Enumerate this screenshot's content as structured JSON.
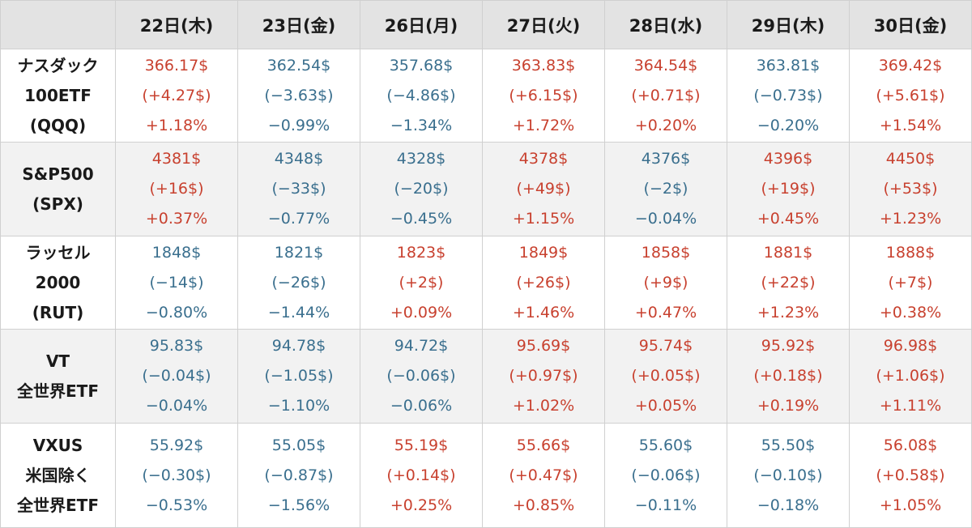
{
  "colors": {
    "up": "#c8412f",
    "down": "#3a6f8e",
    "header_bg": "#e3e3e3",
    "alt_row_bg": "#f2f2f2",
    "grid": "#d0d0d0"
  },
  "header": {
    "corner": "",
    "dates": [
      "22日(木)",
      "23日(金)",
      "26日(月)",
      "27日(火)",
      "28日(水)",
      "29日(木)",
      "30日(金)"
    ]
  },
  "rows": [
    {
      "label": [
        "ナスダック",
        "100ETF",
        "(QQQ)"
      ],
      "cells": [
        {
          "trend": "up",
          "price": "366.17$",
          "change": "(+4.27$)",
          "pct": "+1.18%"
        },
        {
          "trend": "down",
          "price": "362.54$",
          "change": "(−3.63$)",
          "pct": "−0.99%"
        },
        {
          "trend": "down",
          "price": "357.68$",
          "change": "(−4.86$)",
          "pct": "−1.34%"
        },
        {
          "trend": "up",
          "price": "363.83$",
          "change": "(+6.15$)",
          "pct": "+1.72%"
        },
        {
          "trend": "up",
          "price": "364.54$",
          "change": "(+0.71$)",
          "pct": "+0.20%"
        },
        {
          "trend": "down",
          "price": "363.81$",
          "change": "(−0.73$)",
          "pct": "−0.20%"
        },
        {
          "trend": "up",
          "price": "369.42$",
          "change": "(+5.61$)",
          "pct": "+1.54%"
        }
      ]
    },
    {
      "label": [
        "S&P500",
        "(SPX)"
      ],
      "cells": [
        {
          "trend": "up",
          "price": "4381$",
          "change": "(+16$)",
          "pct": "+0.37%"
        },
        {
          "trend": "down",
          "price": "4348$",
          "change": "(−33$)",
          "pct": "−0.77%"
        },
        {
          "trend": "down",
          "price": "4328$",
          "change": "(−20$)",
          "pct": "−0.45%"
        },
        {
          "trend": "up",
          "price": "4378$",
          "change": "(+49$)",
          "pct": "+1.15%"
        },
        {
          "trend": "down",
          "price": "4376$",
          "change": "(−2$)",
          "pct": "−0.04%"
        },
        {
          "trend": "up",
          "price": "4396$",
          "change": "(+19$)",
          "pct": "+0.45%"
        },
        {
          "trend": "up",
          "price": "4450$",
          "change": "(+53$)",
          "pct": "+1.23%"
        }
      ]
    },
    {
      "label": [
        "ラッセル",
        "2000",
        "(RUT)"
      ],
      "cells": [
        {
          "trend": "down",
          "price": "1848$",
          "change": "(−14$)",
          "pct": "−0.80%"
        },
        {
          "trend": "down",
          "price": "1821$",
          "change": "(−26$)",
          "pct": "−1.44%"
        },
        {
          "trend": "up",
          "price": "1823$",
          "change": "(+2$)",
          "pct": "+0.09%"
        },
        {
          "trend": "up",
          "price": "1849$",
          "change": "(+26$)",
          "pct": "+1.46%"
        },
        {
          "trend": "up",
          "price": "1858$",
          "change": "(+9$)",
          "pct": "+0.47%"
        },
        {
          "trend": "up",
          "price": "1881$",
          "change": "(+22$)",
          "pct": "+1.23%"
        },
        {
          "trend": "up",
          "price": "1888$",
          "change": "(+7$)",
          "pct": "+0.38%"
        }
      ]
    },
    {
      "label": [
        "VT",
        "全世界ETF"
      ],
      "cells": [
        {
          "trend": "down",
          "price": "95.83$",
          "change": "(−0.04$)",
          "pct": "−0.04%"
        },
        {
          "trend": "down",
          "price": "94.78$",
          "change": "(−1.05$)",
          "pct": "−1.10%"
        },
        {
          "trend": "down",
          "price": "94.72$",
          "change": "(−0.06$)",
          "pct": "−0.06%"
        },
        {
          "trend": "up",
          "price": "95.69$",
          "change": "(+0.97$)",
          "pct": "+1.02%"
        },
        {
          "trend": "up",
          "price": "95.74$",
          "change": "(+0.05$)",
          "pct": "+0.05%"
        },
        {
          "trend": "up",
          "price": "95.92$",
          "change": "(+0.18$)",
          "pct": "+0.19%"
        },
        {
          "trend": "up",
          "price": "96.98$",
          "change": "(+1.06$)",
          "pct": "+1.11%"
        }
      ]
    },
    {
      "label": [
        "VXUS",
        "米国除く",
        "全世界ETF"
      ],
      "cells": [
        {
          "trend": "down",
          "price": "55.92$",
          "change": "(−0.30$)",
          "pct": "−0.53%"
        },
        {
          "trend": "down",
          "price": "55.05$",
          "change": "(−0.87$)",
          "pct": "−1.56%"
        },
        {
          "trend": "up",
          "price": "55.19$",
          "change": "(+0.14$)",
          "pct": "+0.25%"
        },
        {
          "trend": "up",
          "price": "55.66$",
          "change": "(+0.47$)",
          "pct": "+0.85%"
        },
        {
          "trend": "down",
          "price": "55.60$",
          "change": "(−0.06$)",
          "pct": "−0.11%"
        },
        {
          "trend": "down",
          "price": "55.50$",
          "change": "(−0.10$)",
          "pct": "−0.18%"
        },
        {
          "trend": "up",
          "price": "56.08$",
          "change": "(+0.58$)",
          "pct": "+1.05%"
        }
      ]
    }
  ]
}
